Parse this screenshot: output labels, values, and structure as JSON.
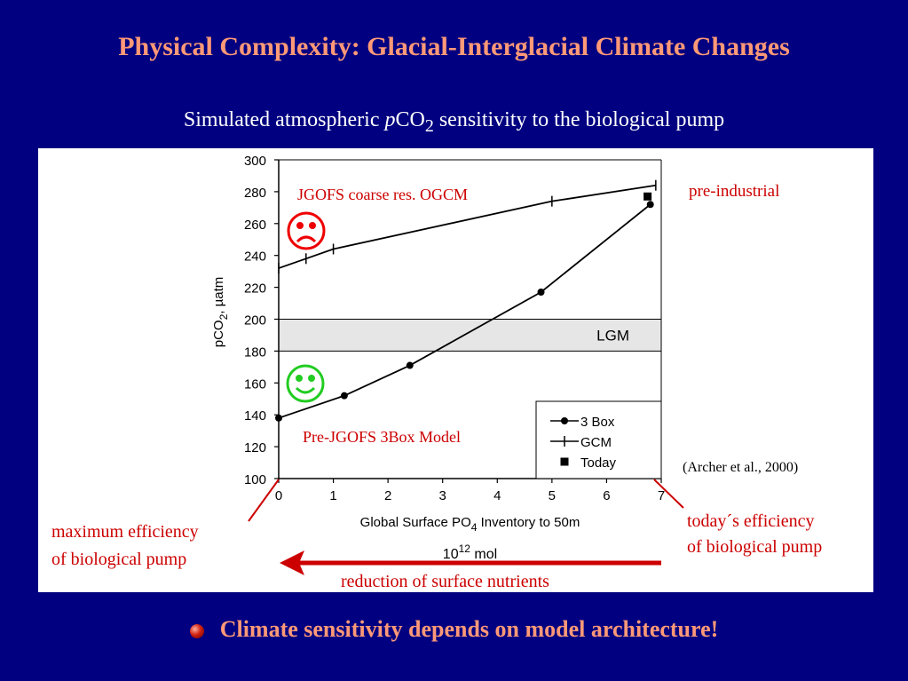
{
  "slide": {
    "title": "Physical Complexity: Glacial-Interglacial Climate Changes",
    "subtitle_prefix": "Simulated atmospheric ",
    "subtitle_italic": "p",
    "subtitle_chem": "CO",
    "subtitle_sub": "2",
    "subtitle_suffix": " sensitivity to the biological pump",
    "conclusion": "Climate sensitivity depends on model architecture!"
  },
  "annotations": {
    "gcm_label": "JGOFS coarse res. OGCM",
    "box_label": "Pre-JGOFS 3Box Model",
    "preindustrial": "pre-industrial",
    "citation": "(Archer et al., 2000)",
    "today_eff": "today´s efficiency",
    "today_eff2": "of biological pump",
    "max_eff": "maximum efficiency",
    "max_eff2": "of biological pump",
    "reduction": "reduction of surface nutrients"
  },
  "colors": {
    "background": "#000080",
    "title": "#ff9977",
    "annotation_red": "#cc0000",
    "sad_face": "#ee0000",
    "happy_face": "#22cc22",
    "lgm_band": "#e6e6e6"
  },
  "icons": {
    "sad": "sad-face-icon",
    "happy": "happy-face-icon",
    "bullet": "red-ball-bullet-icon",
    "arrow": "left-arrow-icon"
  },
  "chart_data": {
    "type": "line",
    "xlabel": "Global Surface PO",
    "xlabel_sub": "4",
    "xlabel_suffix": " Inventory to 50m",
    "xunit": "10",
    "xunit_sup": "12",
    "xunit_suffix": " mol",
    "ylabel": "pCO",
    "ylabel_sub": "2",
    "ylabel_suffix": ", µatm",
    "xlim": [
      0,
      7
    ],
    "ylim": [
      100,
      300
    ],
    "xticks": [
      0,
      1,
      2,
      3,
      4,
      5,
      6,
      7
    ],
    "yticks": [
      100,
      120,
      140,
      160,
      180,
      200,
      220,
      240,
      260,
      280,
      300
    ],
    "band": {
      "label": "LGM",
      "y0": 180,
      "y1": 200
    },
    "series": [
      {
        "name": "3 Box",
        "marker": "circle",
        "x": [
          0,
          1.2,
          2.4,
          4.8,
          6.8
        ],
        "y": [
          138,
          152,
          171,
          217,
          272
        ]
      },
      {
        "name": "GCM",
        "marker": "plus",
        "x": [
          0,
          0.5,
          1,
          5,
          6.9
        ],
        "y": [
          232,
          238,
          244,
          274,
          284
        ]
      },
      {
        "name": "Today",
        "marker": "square",
        "x": [
          6.75
        ],
        "y": [
          277
        ]
      }
    ]
  }
}
